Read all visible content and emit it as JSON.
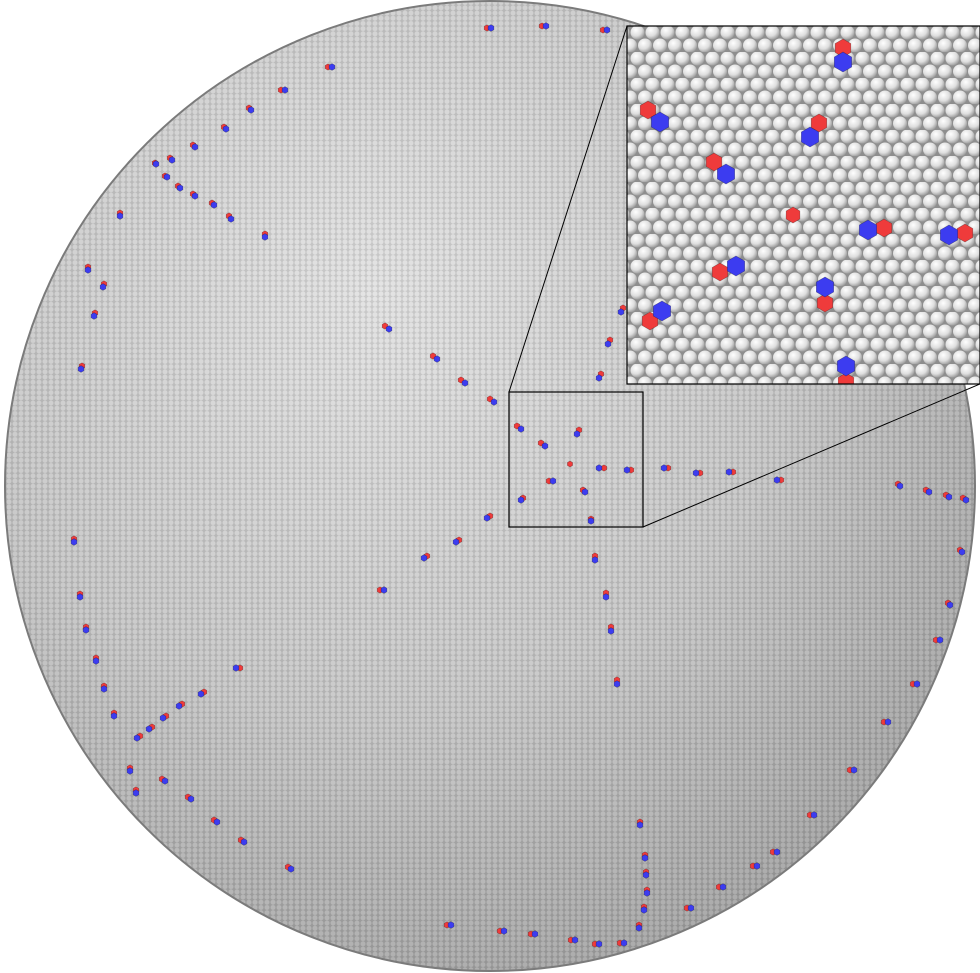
{
  "scene": {
    "subject": "crystal-sphere-with-defect-scars",
    "colors": {
      "background": "#ffffff",
      "particle": "#e6e6e6",
      "particle_shade": "#8a8a8a",
      "defect_positive": "#ef3b3b",
      "defect_negative": "#3c3cf0",
      "frame": "#000000"
    },
    "defects": {
      "central_disclination": "red",
      "scar_arms": 7
    },
    "inset": {
      "kind": "magnified-view",
      "of": "region-around-central-disclination"
    }
  }
}
